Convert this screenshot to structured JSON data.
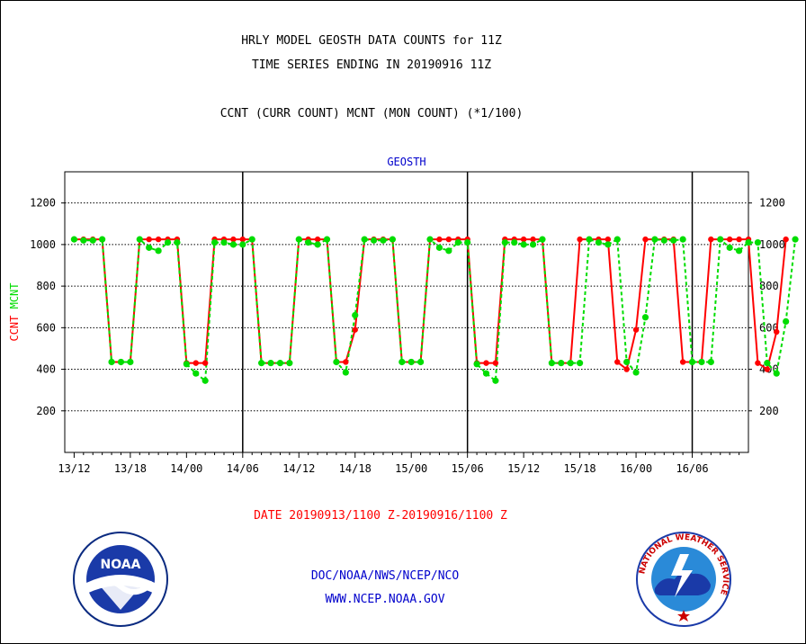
{
  "header": {
    "line1": "HRLY MODEL GEOSTH DATA COUNTS for 11Z",
    "line2": "TIME SERIES ENDING IN 20190916 11Z",
    "line3": "CCNT (CURR COUNT) MCNT (MON COUNT) (*1/100)"
  },
  "footer": {
    "date_range": "DATE 20190913/1100 Z-20190916/1100 Z",
    "org": "DOC/NOAA/NWS/NCEP/NCO",
    "url": "WWW.NCEP.NOAA.GOV"
  },
  "logos": {
    "noaa_text": "NOAA",
    "nws_text": "NATIONAL WEATHER SERVICE"
  },
  "colors": {
    "ccnt": "#ff0000",
    "mcnt": "#00dd00",
    "label_blue": "#0000cc",
    "grid": "#000000"
  },
  "chart_data": {
    "type": "line",
    "title": "GEOSTH",
    "ylabel_ccnt": "CCNT",
    "ylabel_mcnt": "MCNT",
    "ylim": [
      0,
      1350
    ],
    "xlim": [
      -1,
      72
    ],
    "yticks": [
      200,
      400,
      600,
      800,
      1000,
      1200
    ],
    "xticks": [
      {
        "h": 0,
        "label": "13/12"
      },
      {
        "h": 6,
        "label": "13/18"
      },
      {
        "h": 12,
        "label": "14/00"
      },
      {
        "h": 18,
        "label": "14/06"
      },
      {
        "h": 24,
        "label": "14/12"
      },
      {
        "h": 30,
        "label": "14/18"
      },
      {
        "h": 36,
        "label": "15/00"
      },
      {
        "h": 42,
        "label": "15/06"
      },
      {
        "h": 48,
        "label": "15/12"
      },
      {
        "h": 54,
        "label": "15/18"
      },
      {
        "h": 60,
        "label": "16/00"
      },
      {
        "h": 66,
        "label": "16/06"
      }
    ],
    "day_boundaries": [
      18,
      42,
      66
    ],
    "x_unit": "hours since 13/11Z",
    "series": [
      {
        "name": "CCNT",
        "values": [
          1025,
          1025,
          1025,
          1025,
          435,
          435,
          435,
          1025,
          1025,
          1025,
          1025,
          1025,
          430,
          430,
          430,
          1025,
          1025,
          1025,
          1025,
          1025,
          430,
          430,
          430,
          430,
          1025,
          1025,
          1025,
          1025,
          435,
          435,
          590,
          1025,
          1025,
          1025,
          1025,
          435,
          435,
          435,
          1025,
          1025,
          1025,
          1025,
          1025,
          430,
          430,
          430,
          1025,
          1025,
          1025,
          1025,
          1025,
          430,
          430,
          430,
          1025,
          1025,
          1025,
          1025,
          435,
          400,
          590,
          1025,
          1025,
          1025,
          1025,
          435,
          435,
          435,
          1025,
          1025,
          1025,
          1025,
          1025,
          430,
          400,
          580,
          1025
        ]
      },
      {
        "name": "MCNT",
        "values": [
          1025,
          1020,
          1020,
          1025,
          435,
          435,
          435,
          1025,
          985,
          970,
          1010,
          1010,
          425,
          380,
          345,
          1010,
          1010,
          1000,
          1000,
          1025,
          430,
          430,
          430,
          430,
          1025,
          1010,
          1000,
          1025,
          435,
          385,
          660,
          1025,
          1020,
          1020,
          1025,
          435,
          435,
          435,
          1025,
          985,
          970,
          1010,
          1010,
          425,
          380,
          345,
          1010,
          1010,
          1000,
          1000,
          1025,
          430,
          430,
          430,
          430,
          1025,
          1010,
          1000,
          1025,
          435,
          385,
          650,
          1025,
          1020,
          1020,
          1025,
          435,
          435,
          435,
          1025,
          985,
          970,
          1010,
          1010,
          430,
          380,
          630,
          1025
        ]
      }
    ]
  }
}
